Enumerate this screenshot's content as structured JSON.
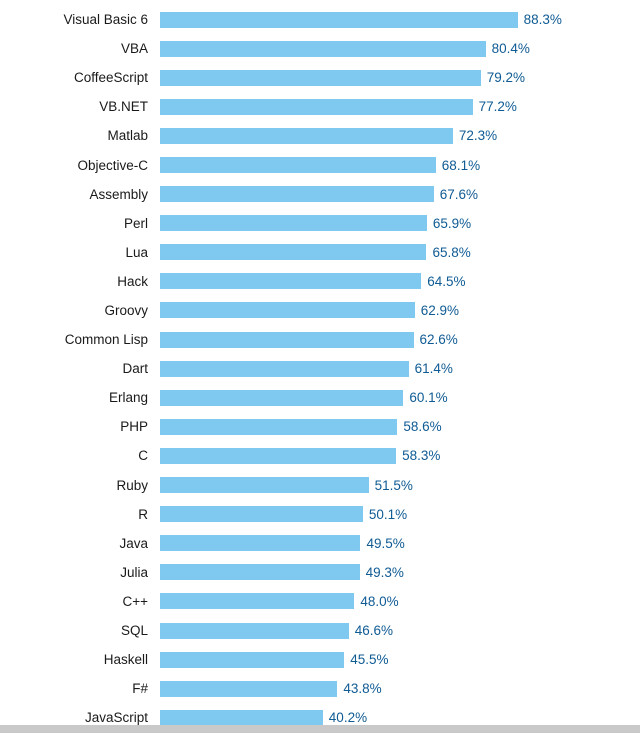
{
  "chart_data": {
    "type": "bar",
    "orientation": "horizontal",
    "unit": "%",
    "xlim": [
      0,
      100
    ],
    "grid": false,
    "legend": false,
    "bar_color": "#7fc8f0",
    "value_color": "#0f5b94",
    "label_color": "#1a1a1a",
    "divider_color": "#c9c9c9",
    "categories": [
      "Visual Basic 6",
      "VBA",
      "CoffeeScript",
      "VB.NET",
      "Matlab",
      "Objective-C",
      "Assembly",
      "Perl",
      "Lua",
      "Hack",
      "Groovy",
      "Common Lisp",
      "Dart",
      "Erlang",
      "PHP",
      "C",
      "Ruby",
      "R",
      "Java",
      "Julia",
      "C++",
      "SQL",
      "Haskell",
      "F#",
      "JavaScript"
    ],
    "values": [
      88.3,
      80.4,
      79.2,
      77.2,
      72.3,
      68.1,
      67.6,
      65.9,
      65.8,
      64.5,
      62.9,
      62.6,
      61.4,
      60.1,
      58.6,
      58.3,
      51.5,
      50.1,
      49.5,
      49.3,
      48.0,
      46.6,
      45.5,
      43.8,
      40.2
    ],
    "value_labels": [
      "88.3%",
      "80.4%",
      "79.2%",
      "77.2%",
      "72.3%",
      "68.1%",
      "67.6%",
      "65.9%",
      "65.8%",
      "64.5%",
      "62.9%",
      "62.6%",
      "61.4%",
      "60.1%",
      "58.6%",
      "58.3%",
      "51.5%",
      "50.1%",
      "49.5%",
      "49.3%",
      "48.0%",
      "46.6%",
      "45.5%",
      "43.8%",
      "40.2%"
    ]
  }
}
